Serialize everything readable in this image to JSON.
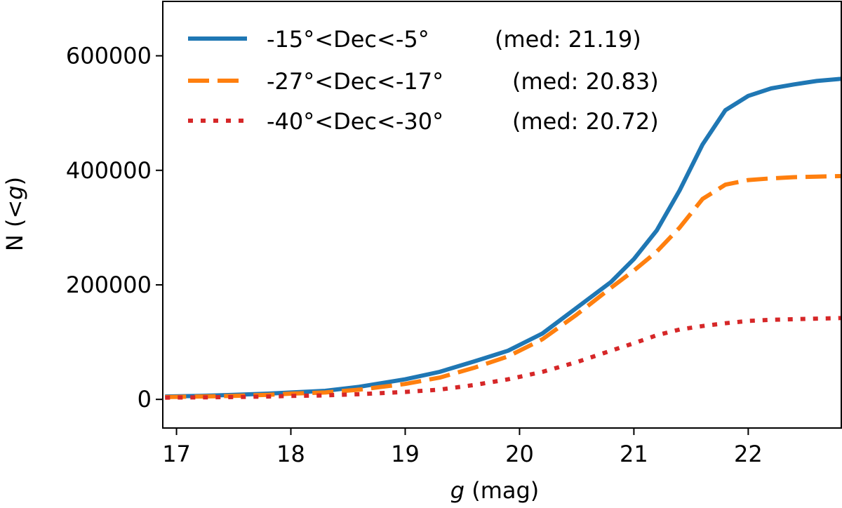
{
  "chart_data": {
    "type": "line",
    "title": "",
    "xlabel_var": "g",
    "xlabel_rest": " (mag)",
    "ylabel_pre": "N (<",
    "ylabel_var": "g",
    "ylabel_post": ")",
    "xlim": [
      16.88,
      22.82
    ],
    "ylim": [
      -50000,
      695000
    ],
    "xticks": [
      17,
      18,
      19,
      20,
      21,
      22
    ],
    "yticks": [
      0,
      200000,
      400000,
      600000
    ],
    "xtick_labels": [
      "17",
      "18",
      "19",
      "20",
      "21",
      "22"
    ],
    "ytick_labels": [
      "0",
      "200000",
      "400000",
      "600000"
    ],
    "legend_position": "top-left",
    "series": [
      {
        "name": "-15°<Dec<-5°",
        "median_label": "(med: 21.19)",
        "color": "#1f77b4",
        "style": "solid",
        "x": [
          16.9,
          17.2,
          17.5,
          17.8,
          18.0,
          18.3,
          18.6,
          19.0,
          19.3,
          19.6,
          19.9,
          20.2,
          20.5,
          20.8,
          21.0,
          21.2,
          21.4,
          21.6,
          21.8,
          22.0,
          22.2,
          22.4,
          22.6,
          22.82
        ],
        "y": [
          5000,
          6000,
          8000,
          10000,
          12000,
          15000,
          22000,
          35000,
          48000,
          66000,
          85000,
          115000,
          160000,
          205000,
          245000,
          295000,
          365000,
          445000,
          505000,
          530000,
          543000,
          550000,
          556000,
          560000
        ]
      },
      {
        "name": "-27°<Dec<-17°",
        "median_label": "(med: 20.83)",
        "color": "#ff7f0e",
        "style": "dashed",
        "x": [
          16.9,
          17.2,
          17.5,
          17.8,
          18.0,
          18.3,
          18.6,
          19.0,
          19.3,
          19.6,
          19.9,
          20.2,
          20.5,
          20.8,
          21.0,
          21.2,
          21.4,
          21.6,
          21.8,
          22.0,
          22.2,
          22.4,
          22.6,
          22.82
        ],
        "y": [
          4000,
          5000,
          6000,
          8000,
          10000,
          12000,
          17000,
          27000,
          38000,
          55000,
          75000,
          105000,
          148000,
          195000,
          225000,
          258000,
          300000,
          350000,
          375000,
          383000,
          386000,
          388000,
          389000,
          390000
        ]
      },
      {
        "name": "-40°<Dec<-30°",
        "median_label": "(med: 20.72)",
        "color": "#d62728",
        "style": "dotted",
        "x": [
          16.9,
          17.2,
          17.5,
          17.8,
          18.0,
          18.3,
          18.6,
          19.0,
          19.3,
          19.6,
          19.9,
          20.2,
          20.5,
          20.8,
          21.0,
          21.2,
          21.4,
          21.6,
          21.8,
          22.0,
          22.2,
          22.4,
          22.6,
          22.82
        ],
        "y": [
          3000,
          3500,
          4000,
          5000,
          6000,
          7000,
          9000,
          13000,
          17000,
          25000,
          35000,
          48000,
          65000,
          85000,
          98000,
          112000,
          122000,
          128000,
          133000,
          137000,
          139000,
          140000,
          141000,
          142000
        ]
      }
    ]
  }
}
